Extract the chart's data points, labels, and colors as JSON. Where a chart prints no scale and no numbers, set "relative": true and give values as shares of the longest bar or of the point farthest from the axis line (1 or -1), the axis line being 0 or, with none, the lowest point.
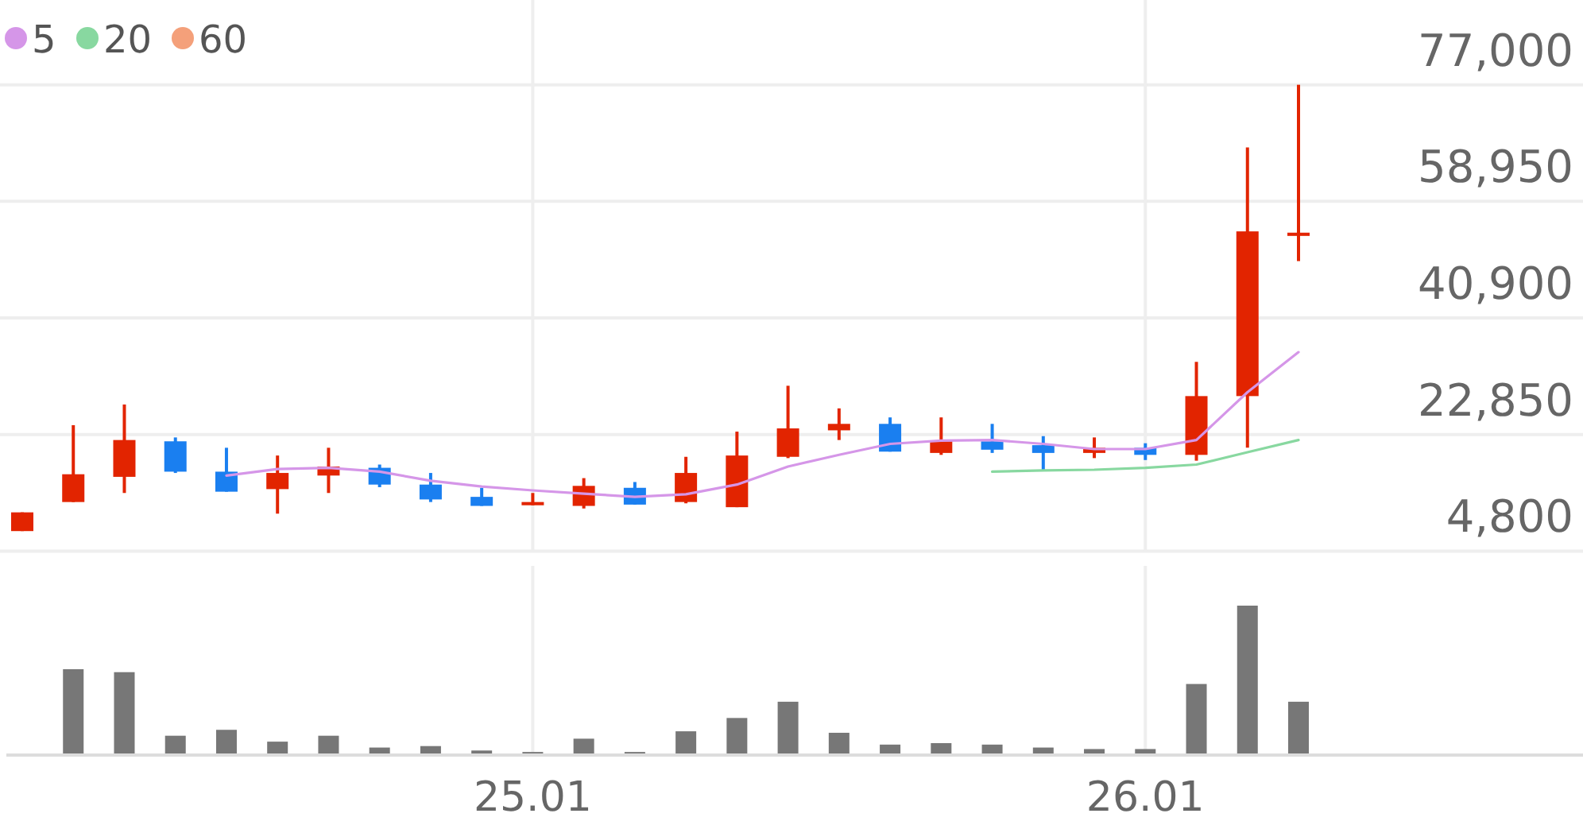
{
  "chart_data": [
    {
      "type": "candlestick",
      "categories": [
        null,
        null,
        null,
        null,
        null,
        null,
        null,
        null,
        null,
        null,
        "25.01",
        null,
        null,
        null,
        null,
        null,
        null,
        null,
        null,
        null,
        null,
        null,
        "26.01",
        null,
        null,
        null
      ],
      "ohlc": [
        [
          7900,
          10800,
          7900,
          10800
        ],
        [
          12400,
          24300,
          12400,
          16700
        ],
        [
          16300,
          27500,
          13800,
          22000
        ],
        [
          21800,
          22400,
          16900,
          17100
        ],
        [
          17100,
          20800,
          14000,
          14000
        ],
        [
          14400,
          19600,
          10600,
          16900
        ],
        [
          16500,
          20800,
          13800,
          17900
        ],
        [
          17700,
          18200,
          14700,
          15100
        ],
        [
          15100,
          16900,
          12400,
          12800
        ],
        [
          13200,
          14600,
          11800,
          11800
        ],
        [
          11900,
          13800,
          11900,
          12400
        ],
        [
          11800,
          16100,
          11400,
          14900
        ],
        [
          14600,
          15500,
          12000,
          12000
        ],
        [
          12400,
          19400,
          12200,
          16900
        ],
        [
          11600,
          23300,
          11600,
          19600
        ],
        [
          19400,
          30400,
          19200,
          23800
        ],
        [
          23500,
          26900,
          22000,
          24500
        ],
        [
          24500,
          25500,
          20200,
          20200
        ],
        [
          20000,
          25500,
          19700,
          21900
        ],
        [
          21800,
          24500,
          20000,
          20500
        ],
        [
          21200,
          22600,
          17300,
          20000
        ],
        [
          20000,
          22400,
          19200,
          20800
        ],
        [
          20800,
          21500,
          18900,
          19700
        ],
        [
          19700,
          34100,
          18800,
          28800
        ],
        [
          28800,
          67300,
          20800,
          54300
        ],
        [
          53600,
          77000,
          49700,
          54100
        ]
      ],
      "colors": [
        "#e22400",
        "#e22400",
        "#e22400",
        "#1a7ff0",
        "#1a7ff0",
        "#e22400",
        "#e22400",
        "#1a7ff0",
        "#1a7ff0",
        "#1a7ff0",
        "#e22400",
        "#e22400",
        "#1a7ff0",
        "#e22400",
        "#e22400",
        "#e22400",
        "#e22400",
        "#1a7ff0",
        "#e22400",
        "#1a7ff0",
        "#1a7ff0",
        "#e22400",
        "#1a7ff0",
        "#e22400",
        "#e22400",
        "#e22400"
      ],
      "series": [
        {
          "type": "line",
          "name": "5",
          "color": "#d596e8",
          "values": [
            null,
            null,
            null,
            null,
            16500,
            17500,
            17700,
            17100,
            15700,
            14800,
            14200,
            13700,
            13200,
            13600,
            15100,
            17900,
            19700,
            21400,
            21900,
            22000,
            21400,
            20600,
            20600,
            22000,
            29400,
            35600
          ]
        },
        {
          "type": "line",
          "name": "20",
          "color": "#88d8a0",
          "values": [
            null,
            null,
            null,
            null,
            null,
            null,
            null,
            null,
            null,
            null,
            null,
            null,
            null,
            null,
            null,
            null,
            null,
            null,
            null,
            17100,
            17300,
            17400,
            17700,
            18200,
            20100,
            22000
          ]
        },
        {
          "type": "line",
          "name": "60",
          "color": "#f4a07a",
          "values": [
            null,
            null,
            null,
            null,
            null,
            null,
            null,
            null,
            null,
            null,
            null,
            null,
            null,
            null,
            null,
            null,
            null,
            null,
            null,
            null,
            null,
            null,
            null,
            null,
            null,
            null
          ]
        }
      ],
      "ylim": [
        4800,
        90000
      ],
      "yticks": [
        {
          "value": 4800,
          "label": "4,800"
        },
        {
          "value": 22850,
          "label": "22,850"
        },
        {
          "value": 40900,
          "label": "40,900"
        },
        {
          "value": 58950,
          "label": "58,950"
        },
        {
          "value": 77000,
          "label": "77,000"
        }
      ],
      "grid": true,
      "legend": "top left",
      "tick_labels": "y"
    },
    {
      "type": "bar",
      "categories": [
        null,
        null,
        null,
        null,
        null,
        null,
        null,
        null,
        null,
        null,
        "25.01",
        null,
        null,
        null,
        null,
        null,
        null,
        null,
        null,
        null,
        null,
        null,
        "26.01",
        null,
        null,
        null
      ],
      "values": [
        null,
        0.57,
        0.55,
        0.12,
        0.16,
        0.08,
        0.12,
        0.04,
        0.05,
        0.02,
        0.01,
        0.1,
        0.01,
        0.15,
        0.24,
        0.35,
        0.14,
        0.06,
        0.07,
        0.06,
        0.04,
        0.03,
        0.03,
        0.47,
        1,
        0.35
      ],
      "color": "#777777",
      "relative": true,
      "grid": "x"
    }
  ]
}
